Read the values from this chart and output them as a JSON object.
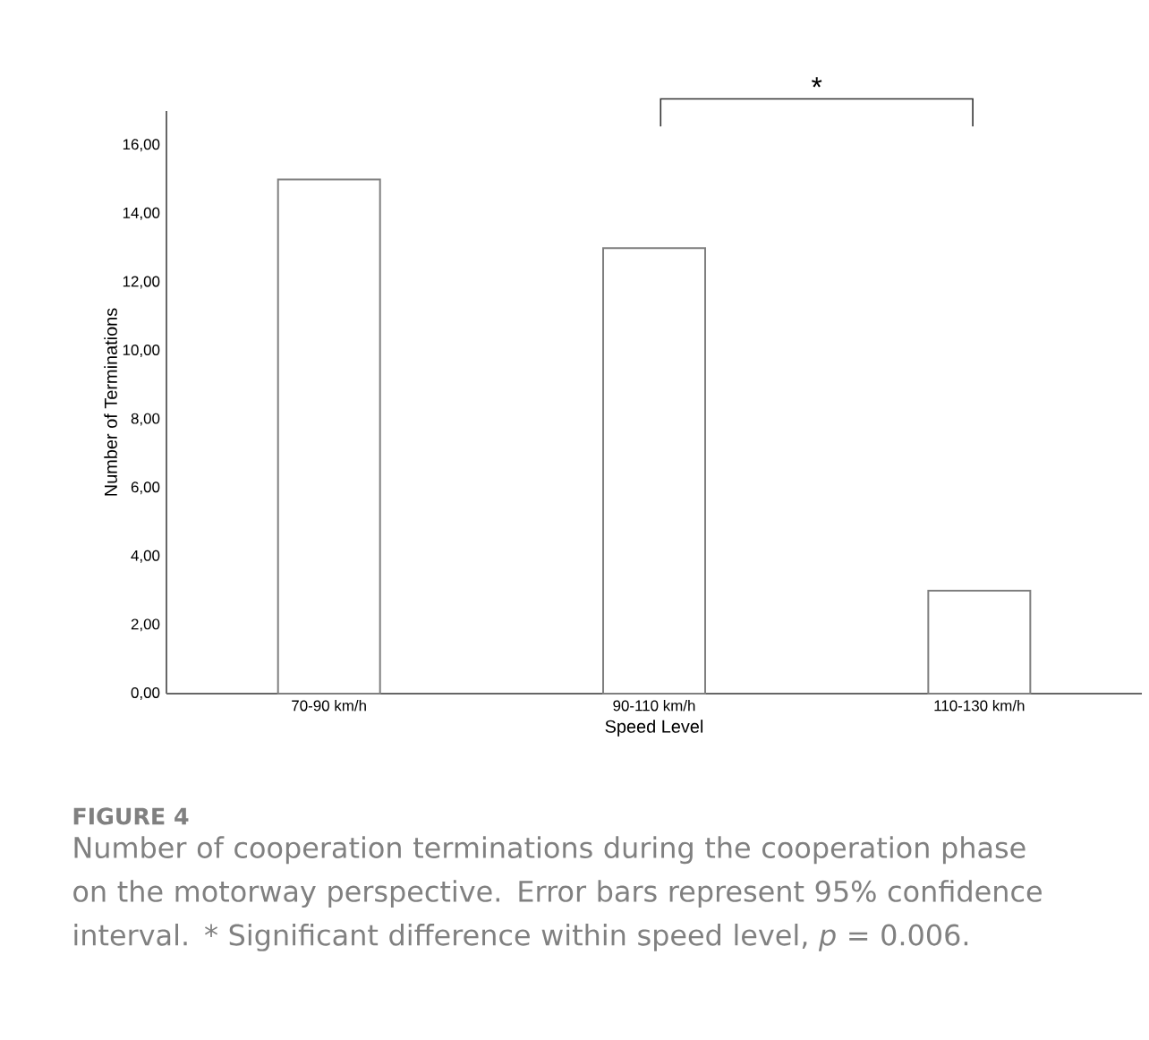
{
  "chart_data": {
    "type": "bar",
    "xlabel": "Speed Level",
    "ylabel": "Number of Terminations",
    "categories": [
      "70-90 km/h",
      "90-110 km/h",
      "110-130 km/h"
    ],
    "values": [
      15,
      13,
      3
    ],
    "color": "#ffffff",
    "ylim": [
      0,
      17
    ],
    "yticks": [
      {
        "value": 0,
        "label": "0,00"
      },
      {
        "value": 2,
        "label": "2,00"
      },
      {
        "value": 4,
        "label": "4,00"
      },
      {
        "value": 6,
        "label": "6,00"
      },
      {
        "value": 8,
        "label": "8,00"
      },
      {
        "value": 10,
        "label": "10,00"
      },
      {
        "value": 12,
        "label": "12,00"
      },
      {
        "value": 14,
        "label": "14,00"
      },
      {
        "value": 16,
        "label": "16,00"
      }
    ],
    "annotations": [
      "*",
      "FIGURE 4",
      "Number of cooperation terminations during the cooperation phase on the motorway perspective. Error bars represent 95% confidence interval. * Significant difference within speed level, *p* = 0.006."
    ]
  }
}
